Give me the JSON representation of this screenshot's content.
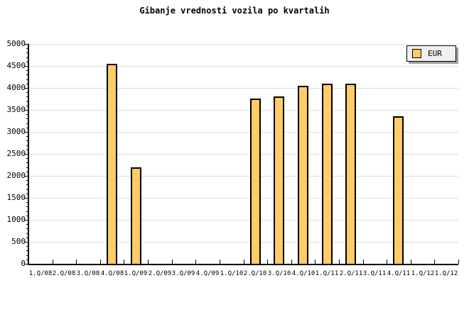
{
  "title": "Gibanje vrednosti vozila po kvartalih",
  "legend": {
    "label": "EUR"
  },
  "colors": {
    "background": "#ffffff",
    "bar_fill": "#FFCC66",
    "bar_border": "#000000",
    "grid": "#DDDDDD",
    "axis": "#000000",
    "legend_bg": "#F0F0F0",
    "legend_shadow": "#A0A0A0",
    "text": "#000000"
  },
  "chart_data": {
    "type": "bar",
    "title": "Gibanje vrednosti vozila po kvartalih",
    "categories": [
      "1.Q/08",
      "2.Q/08",
      "3.Q/08",
      "4.Q/08",
      "1.Q/09",
      "2.Q/09",
      "3.Q/09",
      "4.Q/09",
      "1.Q/10",
      "2.Q/10",
      "3.Q/10",
      "4.Q/10",
      "1.Q/11",
      "2.Q/11",
      "3.Q/11",
      "4.Q/11",
      "1.Q/12",
      "1.Q/12"
    ],
    "series": [
      {
        "name": "EUR",
        "values": [
          null,
          null,
          null,
          4550,
          2200,
          null,
          null,
          null,
          null,
          3750,
          3800,
          4050,
          4100,
          4100,
          null,
          3350,
          null,
          null
        ]
      }
    ],
    "xlabel": "",
    "ylabel": "",
    "ylim": [
      0,
      5000
    ],
    "ytick_interval": 500,
    "ytick_minor_interval": 100,
    "grid": "horizontal-major",
    "legend_position": "top-right"
  }
}
